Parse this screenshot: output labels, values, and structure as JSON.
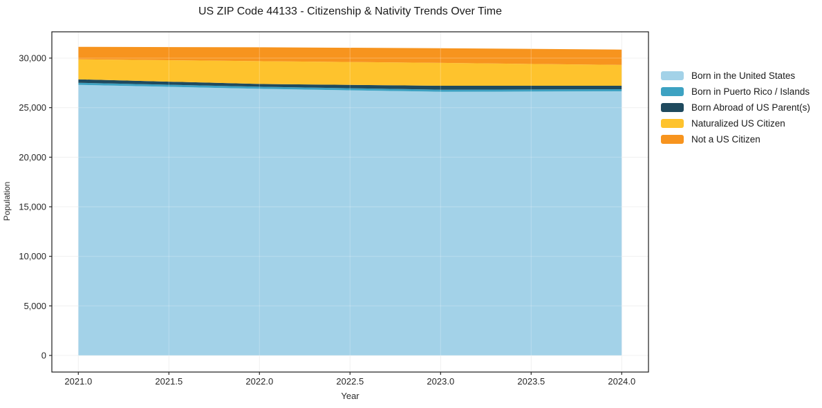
{
  "chart_data": {
    "type": "area",
    "stacked": true,
    "title": "US ZIP Code 44133 - Citizenship & Nativity Trends Over Time",
    "xlabel": "Year",
    "ylabel": "Population",
    "x": [
      2021,
      2022,
      2023,
      2024
    ],
    "series": [
      {
        "name": "Born in the United States",
        "color": "#A3D2E8",
        "values": [
          27300,
          26900,
          26600,
          26650
        ]
      },
      {
        "name": "Born in Puerto Rico / Islands",
        "color": "#3DA2C2",
        "values": [
          210,
          210,
          210,
          210
        ]
      },
      {
        "name": "Born Abroad of US Parent(s)",
        "color": "#1F4A5E",
        "values": [
          350,
          280,
          400,
          350
        ]
      },
      {
        "name": "Naturalized US Citizen",
        "color": "#FEC32D",
        "values": [
          2020,
          2300,
          2310,
          2100
        ]
      },
      {
        "name": "Not a US Citizen",
        "color": "#F7941E",
        "values": [
          1260,
          1400,
          1480,
          1550
        ]
      }
    ],
    "xticks": [
      2021.0,
      2021.5,
      2022.0,
      2022.5,
      2023.0,
      2023.5,
      2024.0
    ],
    "xtick_labels": [
      "2021.0",
      "2021.5",
      "2022.0",
      "2022.5",
      "2023.0",
      "2023.5",
      "2024.0"
    ],
    "yticks": [
      0,
      5000,
      10000,
      15000,
      20000,
      25000,
      30000
    ],
    "ytick_labels": [
      "0",
      "5,000",
      "10,000",
      "15,000",
      "20,000",
      "25,000",
      "30,000"
    ],
    "xlim": [
      2020.85,
      2024.15
    ],
    "ylim": [
      -1700,
      32650
    ],
    "grid": true,
    "legend_position": "right",
    "colors": {
      "grid": "#ececec",
      "grid_overlay": "rgba(255,255,255,0.22)",
      "spine": "#1a1a1a",
      "tick": "#262626"
    }
  }
}
